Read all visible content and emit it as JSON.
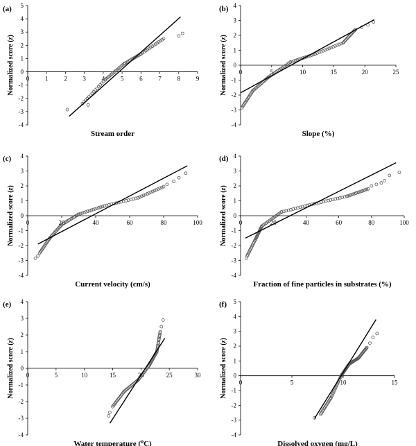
{
  "chart_data": [
    {
      "type": "scatter",
      "panel_label": "(a)",
      "xlabel": "Stream order",
      "ylabel": "Normalized score (z)",
      "xlim": [
        0,
        9
      ],
      "ylim": [
        -4,
        5
      ],
      "xticks": [
        0,
        1,
        2,
        3,
        4,
        5,
        6,
        7,
        8,
        9
      ],
      "yticks": [
        -4,
        -3,
        -2,
        -1,
        0,
        1,
        2,
        3,
        4,
        5
      ],
      "fit_line": [
        [
          2.2,
          -3.35
        ],
        [
          8.1,
          4.15
        ]
      ],
      "segments": [
        [
          2.9,
          -2.4,
          4.1,
          -0.6
        ],
        [
          4.1,
          -0.6,
          5.1,
          0.6
        ],
        [
          5.1,
          0.6,
          6.0,
          1.35
        ],
        [
          6.0,
          1.35,
          7.2,
          2.5
        ]
      ],
      "outliers": [
        [
          2.1,
          -2.85
        ],
        [
          3.2,
          -2.5
        ],
        [
          8.0,
          2.7
        ],
        [
          8.2,
          2.9
        ]
      ]
    },
    {
      "type": "scatter",
      "panel_label": "(b)",
      "xlabel": "Slope (%)",
      "ylabel": "Normalized score (z)",
      "xlim": [
        0,
        25
      ],
      "ylim": [
        -4,
        4
      ],
      "xticks": [
        0,
        5,
        10,
        15,
        20,
        25
      ],
      "yticks": [
        -4,
        -3,
        -2,
        -1,
        0,
        1,
        2,
        3,
        4
      ],
      "fit_line": [
        [
          0,
          -1.85
        ],
        [
          21.5,
          3.05
        ]
      ],
      "segments": [
        [
          0.2,
          -2.85,
          2.0,
          -1.7
        ],
        [
          2.0,
          -1.7,
          4.5,
          -0.8
        ],
        [
          4.5,
          -0.8,
          8.0,
          0.2
        ],
        [
          8.0,
          0.2,
          12.0,
          0.75
        ],
        [
          12.0,
          0.75,
          16.5,
          1.5
        ],
        [
          16.5,
          1.5,
          18.5,
          2.4
        ]
      ],
      "outliers": [
        [
          19.5,
          2.55
        ],
        [
          20.5,
          2.7
        ],
        [
          21.4,
          2.9
        ]
      ]
    },
    {
      "type": "scatter",
      "panel_label": "(c)",
      "xlabel": "Current velocity (cm/s)",
      "ylabel": "Normalized score (z)",
      "xlim": [
        0,
        100
      ],
      "ylim": [
        -4,
        4
      ],
      "xticks": [
        0,
        20,
        40,
        60,
        80,
        100
      ],
      "yticks": [
        -4,
        -3,
        -2,
        -1,
        0,
        1,
        2,
        3,
        4
      ],
      "fit_line": [
        [
          6,
          -1.9
        ],
        [
          94,
          3.35
        ]
      ],
      "segments": [
        [
          7,
          -2.5,
          13,
          -1.5
        ],
        [
          13,
          -1.5,
          20,
          -0.6
        ],
        [
          20,
          -0.6,
          30,
          0.1
        ],
        [
          30,
          0.1,
          45,
          0.65
        ],
        [
          45,
          0.65,
          65,
          1.2
        ],
        [
          65,
          1.2,
          80,
          1.95
        ]
      ],
      "outliers": [
        [
          4.5,
          -2.85
        ],
        [
          6,
          -2.7
        ],
        [
          82,
          2.1
        ],
        [
          86,
          2.3
        ],
        [
          89,
          2.55
        ],
        [
          93,
          2.85
        ]
      ]
    },
    {
      "type": "scatter",
      "panel_label": "(d)",
      "xlabel": "Fraction of fine particles in substrates (%)",
      "ylabel": "Normalized score (z)",
      "xlim": [
        0,
        100
      ],
      "ylim": [
        -4,
        4
      ],
      "xticks": [
        0,
        20,
        40,
        60,
        80,
        100
      ],
      "yticks": [
        -4,
        -3,
        -2,
        -1,
        0,
        1,
        2,
        3,
        4
      ],
      "fit_line": [
        [
          3,
          -1.5
        ],
        [
          95,
          3.55
        ]
      ],
      "segments": [
        [
          4,
          -2.7,
          9,
          -1.6
        ],
        [
          9,
          -1.6,
          13,
          -0.7
        ],
        [
          13,
          -0.7,
          25,
          0.25
        ],
        [
          25,
          0.25,
          45,
          0.8
        ],
        [
          45,
          0.8,
          65,
          1.3
        ],
        [
          65,
          1.3,
          78,
          1.8
        ]
      ],
      "outliers": [
        [
          3.5,
          -2.85
        ],
        [
          80,
          2.0
        ],
        [
          83,
          2.1
        ],
        [
          86,
          2.2
        ],
        [
          88,
          2.35
        ],
        [
          91,
          2.7
        ],
        [
          97,
          2.9
        ]
      ]
    },
    {
      "type": "scatter",
      "panel_label": "(e)",
      "xlabel": "Water temperature (oC)",
      "ylabel": "Normalized score (z)",
      "xlim": [
        0,
        30
      ],
      "ylim": [
        -4,
        4
      ],
      "xticks": [
        0,
        5,
        10,
        15,
        20,
        25,
        30
      ],
      "yticks": [
        -4,
        -3,
        -2,
        -1,
        0,
        1,
        2,
        3,
        4
      ],
      "fit_line": [
        [
          14.5,
          -3.3
        ],
        [
          24.2,
          1.8
        ]
      ],
      "segments": [
        [
          15.0,
          -2.3,
          17.0,
          -1.4
        ],
        [
          17.0,
          -1.4,
          19.5,
          -0.7
        ],
        [
          19.5,
          -0.7,
          21.5,
          0.2
        ],
        [
          21.5,
          0.2,
          22.8,
          1.0
        ],
        [
          22.8,
          1.0,
          23.4,
          2.2
        ]
      ],
      "outliers": [
        [
          14.3,
          -2.85
        ],
        [
          14.5,
          -2.65
        ],
        [
          23.6,
          2.5
        ],
        [
          23.9,
          2.9
        ]
      ]
    },
    {
      "type": "scatter",
      "panel_label": "(f)",
      "xlabel": "Dissolved oxygen (mg/L)",
      "ylabel": "Normalized score (z)",
      "xlim": [
        0,
        15
      ],
      "ylim": [
        -4,
        5
      ],
      "xticks": [
        0,
        5,
        10,
        15
      ],
      "yticks": [
        -4,
        -3,
        -2,
        -1,
        0,
        1,
        2,
        3,
        4,
        5
      ],
      "fit_line": [
        [
          7.2,
          -2.9
        ],
        [
          13.2,
          3.8
        ]
      ],
      "segments": [
        [
          7.8,
          -2.6,
          8.8,
          -1.5
        ],
        [
          8.8,
          -1.5,
          9.8,
          0.0
        ],
        [
          9.8,
          0.0,
          10.6,
          0.8
        ],
        [
          10.6,
          0.8,
          11.5,
          1.2
        ],
        [
          11.5,
          1.2,
          12.3,
          1.9
        ]
      ],
      "outliers": [
        [
          7.2,
          -2.85
        ],
        [
          12.6,
          2.2
        ],
        [
          12.9,
          2.6
        ],
        [
          13.3,
          2.85
        ]
      ]
    }
  ]
}
